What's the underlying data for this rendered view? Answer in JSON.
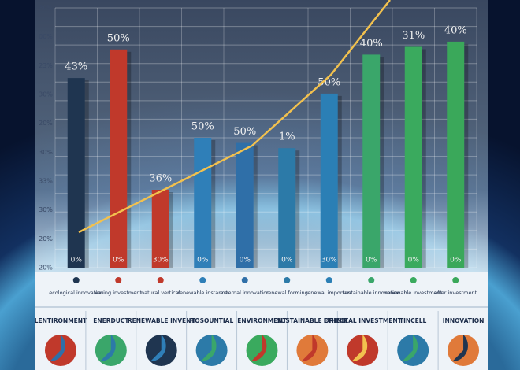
{
  "chart_data": {
    "type": "bar",
    "categories": [
      null,
      null,
      null,
      null,
      null,
      null,
      null,
      null,
      null,
      null
    ],
    "values": [
      73,
      84,
      30,
      50,
      48,
      46,
      67,
      82,
      85,
      87
    ],
    "colors": [
      "#1f3550",
      "#c0392b",
      "#c0392b",
      "#2f7fb8",
      "#2f6fa8",
      "#2c7aa8",
      "#2b7fb5",
      "#3aa66a",
      "#3aaa5e",
      "#3aa85a"
    ],
    "ylim": [
      0,
      100
    ],
    "grid": true,
    "top_labels": [
      "43%",
      "50%",
      "36%",
      "50%",
      "50%",
      "1%",
      "50%",
      "40%",
      "31%",
      "40%"
    ],
    "base_labels": [
      "0%",
      "0%",
      "30%",
      "0%",
      "0%",
      "0%",
      "30%",
      "0%",
      "0%",
      "0%"
    ],
    "axis_texts": [
      "30%",
      "00%",
      "23%",
      "30%",
      "20%",
      "30%",
      "33%",
      "30%",
      "20%",
      "20%"
    ],
    "bar_notes": [
      "ecological innovation",
      "eating investment",
      "natural vertical",
      "renewable instance",
      "external innovation",
      "renewal forming",
      "renewal important",
      "sustainable innovation",
      "renewable investment",
      "alter investment"
    ],
    "panels": [
      "LENTIRONMENT",
      "ENERDUCT",
      "RENEWABLE INVENT",
      "HOSOUNTIAL",
      "ENVIRONMENT",
      "SUSTAINABLE ORIECT",
      "ETHNIKAL INVESTMENT",
      "TINCELL",
      "INNOVATION"
    ]
  }
}
